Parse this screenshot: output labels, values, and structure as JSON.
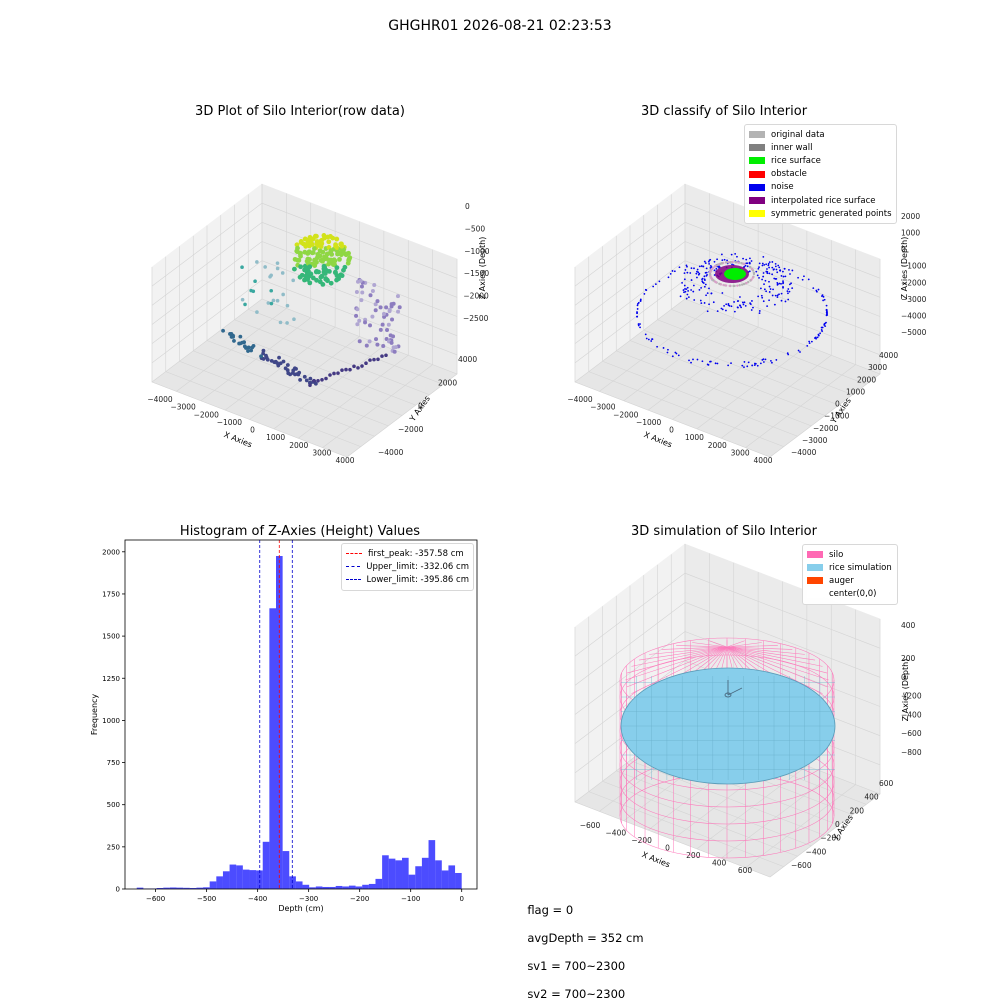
{
  "suptitle": "GHGHR01 2026-08-21 02:23:53",
  "panels": {
    "raw": {
      "title": "3D Plot of Silo Interior(row data)",
      "xlabel": "X Axies",
      "ylabel": "Y Axies",
      "zlabel": "Z Axies (Depth)",
      "xticks": [
        "−4000",
        "−3000",
        "−2000",
        "−1000",
        "0",
        "1000",
        "2000",
        "3000",
        "4000"
      ],
      "yticks": [
        "4000",
        "2000",
        "0",
        "−2000",
        "−4000"
      ],
      "zticks": [
        "0",
        "−500",
        "−1000",
        "−1500",
        "−2000",
        "−2500"
      ]
    },
    "classify": {
      "title": "3D classify of Silo Interior",
      "xlabel": "X Axies",
      "ylabel": "Y Axies",
      "zlabel": "Z Axies (Depth)",
      "xticks": [
        "−4000",
        "−3000",
        "−2000",
        "−1000",
        "0",
        "1000",
        "2000",
        "3000",
        "4000"
      ],
      "yticks": [
        "4000",
        "3000",
        "2000",
        "1000",
        "0",
        "−1000",
        "−2000",
        "−3000",
        "−4000"
      ],
      "zticks": [
        "2000",
        "1000",
        "0",
        "−1000",
        "−2000",
        "−3000",
        "−4000",
        "−5000"
      ],
      "legend": [
        {
          "label": "original data",
          "color": "#b3b3b3"
        },
        {
          "label": "inner wall",
          "color": "#808080"
        },
        {
          "label": "rice surface",
          "color": "#00ee00"
        },
        {
          "label": "obstacle",
          "color": "#ff0000"
        },
        {
          "label": "noise",
          "color": "#0000ee"
        },
        {
          "label": "interpolated rice surface",
          "color": "#800080"
        },
        {
          "label": "symmetric generated points",
          "color": "#ffff00"
        }
      ]
    },
    "simulation": {
      "title": "3D simulation of Silo Interior",
      "xlabel": "X Axies",
      "ylabel": "Y Axies",
      "zlabel": "Z Axies (Depth)",
      "xticks": [
        "−600",
        "−400",
        "−200",
        "0",
        "200",
        "400",
        "600"
      ],
      "yticks": [
        "600",
        "400",
        "200",
        "0",
        "−200",
        "−400",
        "−600"
      ],
      "zticks": [
        "200",
        "0",
        "−200",
        "−400",
        "−600",
        "−800"
      ],
      "ztop_tick": "400",
      "legend": [
        {
          "label": "silo",
          "color": "#ff69b4"
        },
        {
          "label": "rice simulation",
          "color": "#87ceeb"
        },
        {
          "label": "auger",
          "color": "#ff4500"
        },
        {
          "label": "center(0,0)",
          "color": "#ffffff"
        }
      ]
    }
  },
  "chart_data": {
    "type": "bar",
    "title": "Histogram of Z-Axies (Height) Values",
    "xlabel": "Depth (cm)",
    "ylabel": "Frequency",
    "xlim": [
      -660,
      30
    ],
    "ylim": [
      0,
      2070
    ],
    "xticks": [
      -600,
      -500,
      -400,
      -300,
      -200,
      -100,
      0
    ],
    "yticks": [
      0,
      250,
      500,
      750,
      1000,
      1250,
      1500,
      1750,
      2000
    ],
    "bar_color": "#0000ff",
    "bin_width": 13,
    "bin_left_edges": [
      -637,
      -624,
      -611,
      -598,
      -585,
      -572,
      -559,
      -546,
      -533,
      -520,
      -507,
      -494,
      -481,
      -468,
      -455,
      -442,
      -429,
      -416,
      -403,
      -390,
      -377,
      -364,
      -351,
      -338,
      -325,
      -312,
      -299,
      -286,
      -273,
      -260,
      -247,
      -234,
      -221,
      -208,
      -195,
      -182,
      -169,
      -156,
      -143,
      -130,
      -117,
      -104,
      -91,
      -78,
      -65,
      -52,
      -39,
      -26,
      -13
    ],
    "values": [
      8,
      3,
      3,
      6,
      8,
      9,
      8,
      7,
      6,
      8,
      10,
      45,
      75,
      105,
      145,
      140,
      115,
      112,
      110,
      280,
      1665,
      1975,
      225,
      75,
      45,
      25,
      10,
      15,
      12,
      12,
      18,
      15,
      20,
      15,
      25,
      30,
      60,
      200,
      180,
      170,
      185,
      85,
      135,
      185,
      290,
      170,
      110,
      140,
      95
    ],
    "vlines": [
      {
        "label": "first_peak: -357.58 cm",
        "x": -357.58,
        "color": "#ff0000"
      },
      {
        "label": "Upper_limit: -332.06 cm",
        "x": -332.06,
        "color": "#0000cc"
      },
      {
        "label": "Lower_limit: -395.86 cm",
        "x": -395.86,
        "color": "#0000cc"
      }
    ]
  },
  "footer": {
    "flag": "flag = 0",
    "avg": "avgDepth = 352 cm",
    "sv1": "sv1 = 700~2300",
    "sv2": "sv2 = 700~2300"
  }
}
